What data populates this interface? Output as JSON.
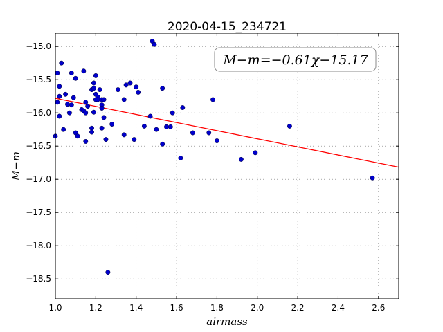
{
  "chart_data": {
    "type": "scatter",
    "title": "2020-04-15_234721",
    "xlabel": "airmass",
    "ylabel": "M−m",
    "xlim": [
      1.0,
      2.7
    ],
    "ylim": [
      -18.8,
      -14.8
    ],
    "xticks": [
      1.0,
      1.2,
      1.4,
      1.6,
      1.8,
      2.0,
      2.2,
      2.4,
      2.6
    ],
    "xtick_labels": [
      "1.0",
      "1.2",
      "1.4",
      "1.6",
      "1.8",
      "2.0",
      "2.2",
      "2.4",
      "2.6"
    ],
    "yticks": [
      -15.0,
      -15.5,
      -16.0,
      -16.5,
      -17.0,
      -17.5,
      -18.0,
      -18.5
    ],
    "ytick_labels": [
      "−15.0",
      "−15.5",
      "−16.0",
      "−16.5",
      "−17.0",
      "−17.5",
      "−18.0",
      "−18.5"
    ],
    "grid": true,
    "annotation": "M−m=−0.61χ−15.17",
    "fit": {
      "slope": -0.61,
      "intercept": -15.17,
      "color": "#ff0000"
    },
    "marker_color": "#0000cc",
    "x": [
      1.0,
      1.01,
      1.01,
      1.02,
      1.02,
      1.02,
      1.03,
      1.04,
      1.05,
      1.06,
      1.07,
      1.08,
      1.08,
      1.09,
      1.1,
      1.1,
      1.11,
      1.13,
      1.14,
      1.14,
      1.15,
      1.15,
      1.15,
      1.16,
      1.18,
      1.18,
      1.18,
      1.19,
      1.19,
      1.19,
      1.2,
      1.2,
      1.2,
      1.21,
      1.21,
      1.22,
      1.23,
      1.23,
      1.23,
      1.23,
      1.24,
      1.24,
      1.25,
      1.26,
      1.28,
      1.31,
      1.34,
      1.34,
      1.35,
      1.37,
      1.39,
      1.4,
      1.41,
      1.44,
      1.47,
      1.48,
      1.49,
      1.5,
      1.53,
      1.53,
      1.55,
      1.57,
      1.58,
      1.62,
      1.63,
      1.68,
      1.76,
      1.78,
      1.8,
      1.92,
      1.99,
      2.16,
      2.57
    ],
    "y": [
      -16.35,
      -15.4,
      -15.84,
      -15.6,
      -15.75,
      -16.05,
      -15.25,
      -16.25,
      -15.72,
      -15.87,
      -16.0,
      -15.4,
      -15.88,
      -15.77,
      -16.3,
      -15.48,
      -16.35,
      -15.95,
      -15.37,
      -15.97,
      -16.43,
      -15.84,
      -16.0,
      -15.9,
      -15.65,
      -16.23,
      -16.29,
      -15.55,
      -15.63,
      -15.99,
      -15.44,
      -15.72,
      -15.8,
      -15.76,
      -15.8,
      -15.65,
      -15.8,
      -15.88,
      -15.93,
      -16.23,
      -15.8,
      -16.07,
      -16.4,
      -18.4,
      -16.17,
      -15.65,
      -15.8,
      -16.33,
      -15.58,
      -15.55,
      -16.4,
      -15.61,
      -15.69,
      -16.2,
      -16.05,
      -14.92,
      -14.97,
      -16.25,
      -15.63,
      -16.47,
      -16.21,
      -16.21,
      -16.0,
      -16.68,
      -15.92,
      -16.3,
      -16.3,
      -15.8,
      -16.42,
      -16.7,
      -16.6,
      -16.2,
      -16.98
    ]
  }
}
